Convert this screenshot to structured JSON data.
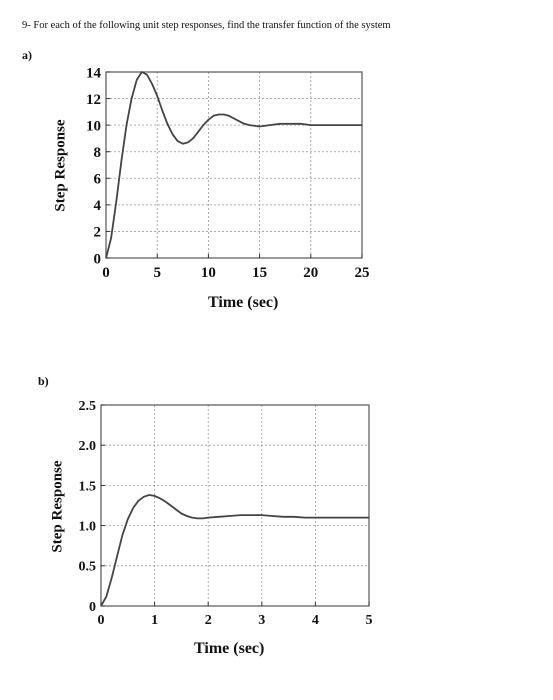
{
  "question": "9- For each of the following unit step responses, find the transfer function of the system",
  "chart_data": [
    {
      "part": "a)",
      "type": "line",
      "ylabel": "Step Response",
      "xlabel": "Time (sec)",
      "x_ticks": [
        "0",
        "5",
        "10",
        "15",
        "20",
        "25"
      ],
      "y_ticks": [
        "0",
        "2",
        "4",
        "6",
        "8",
        "10",
        "12",
        "14"
      ],
      "xlim": [
        0,
        25
      ],
      "ylim": [
        0,
        14
      ],
      "grid": true,
      "series": [
        {
          "x": [
            0,
            0.5,
            1,
            1.5,
            2,
            2.5,
            3,
            3.5,
            4,
            4.5,
            5,
            5.5,
            6,
            6.5,
            7,
            7.5,
            8,
            8.5,
            9,
            9.5,
            10,
            10.5,
            11,
            11.5,
            12,
            12.5,
            13,
            13.5,
            14,
            15,
            16,
            17,
            18,
            19,
            20,
            21,
            22,
            23,
            24,
            25
          ],
          "y": [
            0,
            1.5,
            4.2,
            7.3,
            10,
            12,
            13.4,
            14,
            13.8,
            13.1,
            12.2,
            11.1,
            10.1,
            9.3,
            8.8,
            8.6,
            8.7,
            9.0,
            9.5,
            10.0,
            10.4,
            10.7,
            10.8,
            10.8,
            10.7,
            10.5,
            10.3,
            10.1,
            10.0,
            9.9,
            10.0,
            10.1,
            10.1,
            10.1,
            10.0,
            10.0,
            10.0,
            10.0,
            10.0,
            10.0
          ]
        }
      ]
    },
    {
      "part": "b)",
      "type": "line",
      "ylabel": "Step Response",
      "xlabel": "Time (sec)",
      "x_ticks": [
        "0",
        "1",
        "2",
        "3",
        "4",
        "5"
      ],
      "y_ticks": [
        "0",
        "0.5",
        "1.0",
        "1.5",
        "2.0",
        "2.5"
      ],
      "xlim": [
        0,
        5
      ],
      "ylim": [
        0,
        2.5
      ],
      "grid": true,
      "series": [
        {
          "x": [
            0,
            0.1,
            0.2,
            0.3,
            0.4,
            0.5,
            0.6,
            0.7,
            0.8,
            0.9,
            1.0,
            1.1,
            1.2,
            1.3,
            1.4,
            1.5,
            1.6,
            1.7,
            1.8,
            1.9,
            2.0,
            2.2,
            2.4,
            2.6,
            2.8,
            3.0,
            3.2,
            3.4,
            3.6,
            3.8,
            4.0,
            4.2,
            4.4,
            4.6,
            4.8,
            5.0
          ],
          "y": [
            0,
            0.12,
            0.35,
            0.62,
            0.88,
            1.08,
            1.22,
            1.31,
            1.36,
            1.38,
            1.37,
            1.34,
            1.3,
            1.25,
            1.2,
            1.15,
            1.12,
            1.1,
            1.09,
            1.09,
            1.1,
            1.11,
            1.12,
            1.13,
            1.13,
            1.13,
            1.12,
            1.11,
            1.11,
            1.1,
            1.1,
            1.1,
            1.1,
            1.1,
            1.1,
            1.1
          ]
        }
      ]
    }
  ]
}
